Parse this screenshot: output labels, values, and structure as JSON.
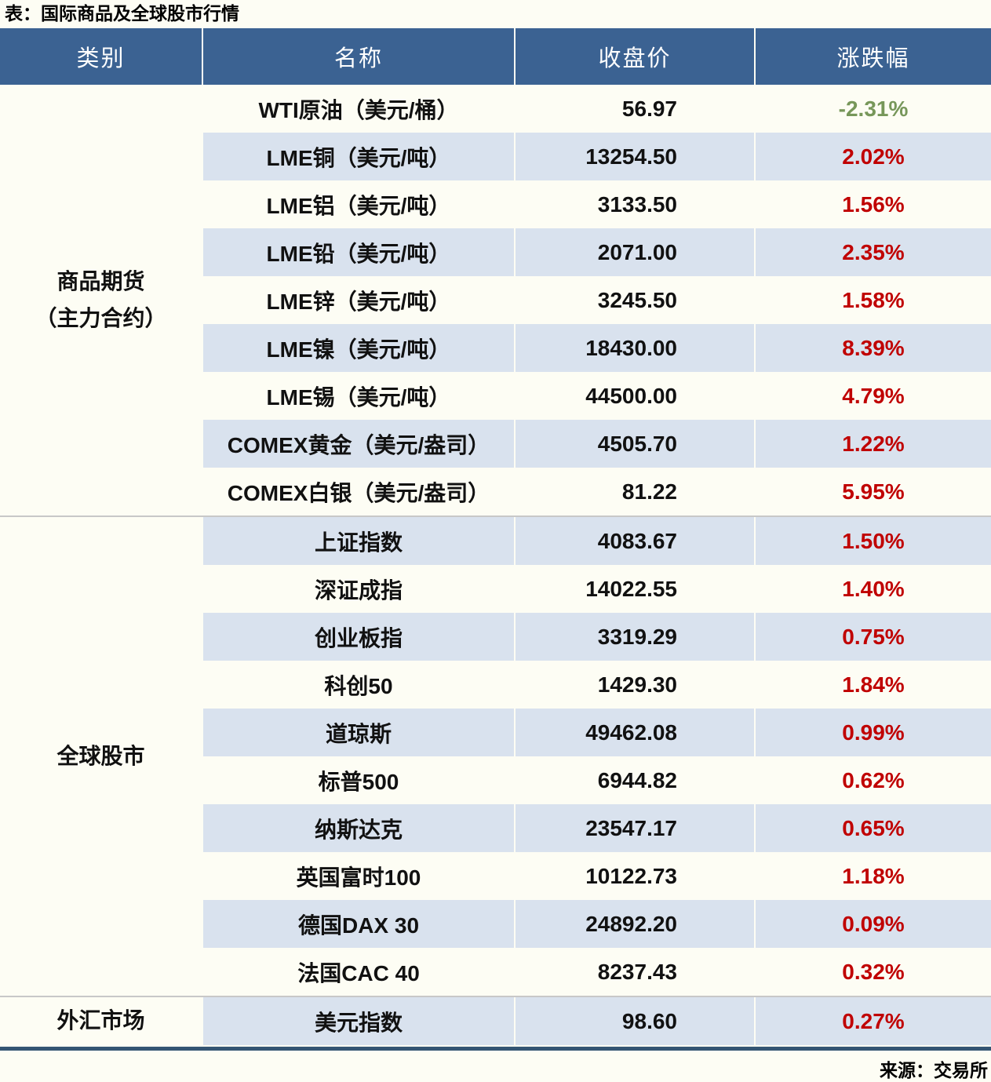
{
  "title": "表：国际商品及全球股市行情",
  "source": "来源：交易所",
  "colors": {
    "header_bg": "#3b6292",
    "stripe_bg": "#d9e2ee",
    "page_bg": "#fdfdf4",
    "up_red": "#c00000",
    "down_green": "#77975a",
    "section_divider": "#c8c8c8",
    "bottom_rule": "#345573"
  },
  "table": {
    "headers": [
      "类别",
      "名称",
      "收盘价",
      "涨跌幅"
    ],
    "sections": [
      {
        "category": "商品期货\n（主力合约）",
        "rows": [
          {
            "name": "WTI原油（美元/桶）",
            "close": "56.97",
            "change": "-2.31%"
          },
          {
            "name": "LME铜（美元/吨）",
            "close": "13254.50",
            "change": "2.02%"
          },
          {
            "name": "LME铝（美元/吨）",
            "close": "3133.50",
            "change": "1.56%"
          },
          {
            "name": "LME铅（美元/吨）",
            "close": "2071.00",
            "change": "2.35%"
          },
          {
            "name": "LME锌（美元/吨）",
            "close": "3245.50",
            "change": "1.58%"
          },
          {
            "name": "LME镍（美元/吨）",
            "close": "18430.00",
            "change": "8.39%"
          },
          {
            "name": "LME锡（美元/吨）",
            "close": "44500.00",
            "change": "4.79%"
          },
          {
            "name": "COMEX黄金（美元/盎司）",
            "close": "4505.70",
            "change": "1.22%"
          },
          {
            "name": "COMEX白银（美元/盎司）",
            "close": "81.22",
            "change": "5.95%"
          }
        ]
      },
      {
        "category": "全球股市",
        "rows": [
          {
            "name": "上证指数",
            "close": "4083.67",
            "change": "1.50%"
          },
          {
            "name": "深证成指",
            "close": "14022.55",
            "change": "1.40%"
          },
          {
            "name": "创业板指",
            "close": "3319.29",
            "change": "0.75%"
          },
          {
            "name": "科创50",
            "close": "1429.30",
            "change": "1.84%"
          },
          {
            "name": "道琼斯",
            "close": "49462.08",
            "change": "0.99%"
          },
          {
            "name": "标普500",
            "close": "6944.82",
            "change": "0.62%"
          },
          {
            "name": "纳斯达克",
            "close": "23547.17",
            "change": "0.65%"
          },
          {
            "name": "英国富时100",
            "close": "10122.73",
            "change": "1.18%"
          },
          {
            "name": "德国DAX 30",
            "close": "24892.20",
            "change": "0.09%"
          },
          {
            "name": "法国CAC 40",
            "close": "8237.43",
            "change": "0.32%"
          }
        ]
      },
      {
        "category": "外汇市场",
        "rows": [
          {
            "name": "美元指数",
            "close": "98.60",
            "change": "0.27%"
          }
        ]
      }
    ]
  }
}
